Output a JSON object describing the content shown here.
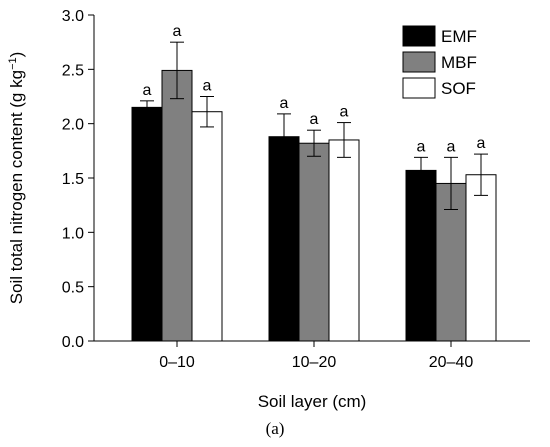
{
  "chart_data": {
    "type": "bar",
    "title": "",
    "xlabel": "Soil layer (cm)",
    "ylabel": "Soil total nitrogen content (g kg",
    "ylabel_sup": "−1",
    "ylabel_end": ")",
    "ylim": [
      0,
      3.0
    ],
    "yticks": [
      "0.0",
      "0.5",
      "1.0",
      "1.5",
      "2.0",
      "2.5",
      "3.0"
    ],
    "categories": [
      "0–10",
      "10–20",
      "20–40"
    ],
    "series": [
      {
        "name": "EMF",
        "color": "#000000",
        "values": [
          2.15,
          1.88,
          1.57
        ],
        "errors": [
          0.06,
          0.21,
          0.12
        ],
        "labels": [
          "a",
          "a",
          "a"
        ]
      },
      {
        "name": "MBF",
        "color": "#808080",
        "values": [
          2.49,
          1.82,
          1.45
        ],
        "errors": [
          0.26,
          0.12,
          0.24
        ],
        "labels": [
          "a",
          "a",
          "a"
        ]
      },
      {
        "name": "SOF",
        "color": "#ffffff",
        "values": [
          2.11,
          1.85,
          1.53
        ],
        "errors": [
          0.14,
          0.16,
          0.19
        ],
        "labels": [
          "a",
          "a",
          "a"
        ]
      }
    ],
    "legend_position": "top-right",
    "grid": false,
    "caption": "(a)"
  }
}
